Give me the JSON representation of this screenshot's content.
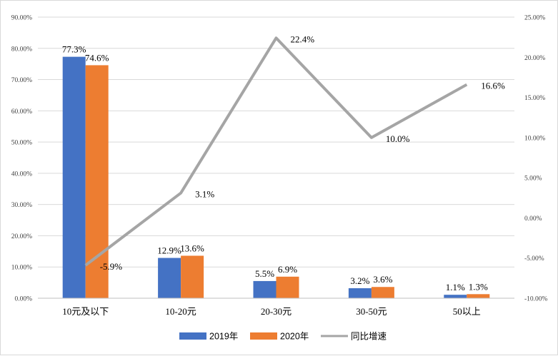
{
  "chart_data": {
    "type": "bar+line",
    "categories": [
      "10元及以下",
      "10-20元",
      "20-30元",
      "30-50元",
      "50以上"
    ],
    "series": [
      {
        "name": "2019年",
        "type": "bar",
        "axis": "left",
        "values": [
          77.3,
          12.9,
          5.5,
          3.2,
          1.1
        ],
        "labels": [
          "77.3%",
          "12.9%",
          "5.5%",
          "3.2%",
          "1.1%"
        ],
        "color": "#4472c4"
      },
      {
        "name": "2020年",
        "type": "bar",
        "axis": "left",
        "values": [
          74.6,
          13.6,
          6.9,
          3.6,
          1.3
        ],
        "labels": [
          "74.6%",
          "13.6%",
          "6.9%",
          "3.6%",
          "1.3%"
        ],
        "color": "#ed7d31"
      },
      {
        "name": "同比增速",
        "type": "line",
        "axis": "right",
        "values": [
          -5.9,
          3.1,
          22.4,
          10.0,
          16.6
        ],
        "labels": [
          "-5.9%",
          "3.1%",
          "22.4%",
          "10.0%",
          "16.6%"
        ],
        "color": "#a5a5a5"
      }
    ],
    "left_axis": {
      "min": 0,
      "max": 90,
      "step": 10,
      "ticks": [
        "0.00%",
        "10.00%",
        "20.00%",
        "30.00%",
        "40.00%",
        "50.00%",
        "60.00%",
        "70.00%",
        "80.00%",
        "90.00%"
      ]
    },
    "right_axis": {
      "min": -10,
      "max": 25,
      "step": 5,
      "ticks": [
        "-10.00%",
        "-5.00%",
        "0.00%",
        "5.00%",
        "10.00%",
        "15.00%",
        "20.00%",
        "25.00%"
      ]
    },
    "gridlines": true,
    "legend_position": "bottom"
  }
}
